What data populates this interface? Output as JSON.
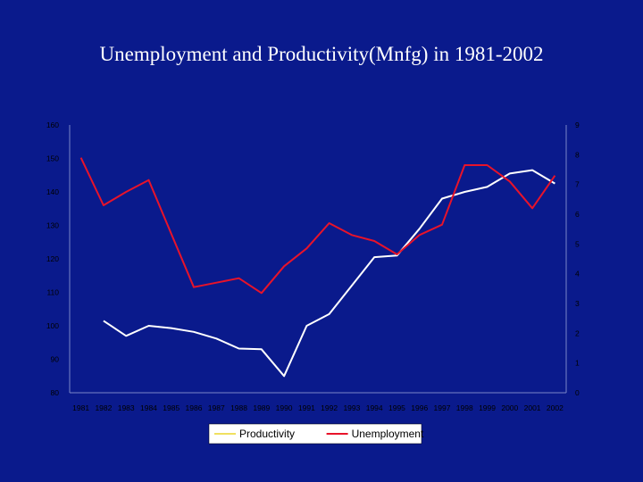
{
  "title": "Unemployment and Productivity(Mnfg) in 1981-2002",
  "chart_data": {
    "type": "line",
    "title": "Unemployment and Productivity(Mnfg) in 1981-2002",
    "categories": [
      "1981",
      "1982",
      "1983",
      "1984",
      "1985",
      "1986",
      "1987",
      "1988",
      "1989",
      "1990",
      "1991",
      "1992",
      "1993",
      "1994",
      "1995",
      "1996",
      "1997",
      "1998",
      "1999",
      "2000",
      "2001",
      "2002"
    ],
    "y_left": {
      "ticks": [
        "80",
        "90",
        "100",
        "110",
        "120",
        "130",
        "140",
        "150",
        "160"
      ],
      "lim": [
        80,
        160
      ]
    },
    "y_right": {
      "ticks": [
        "0",
        "1",
        "2",
        "3",
        "4",
        "5",
        "6",
        "7",
        "8",
        "9"
      ],
      "lim": [
        0,
        9
      ]
    },
    "grid": false,
    "legend_position": "bottom",
    "series": [
      {
        "name": "Productivity",
        "axis": "left",
        "color": "#ffffff",
        "values": [
          null,
          101.5,
          97,
          100,
          99.3,
          98.2,
          96.2,
          93.2,
          93,
          85,
          100,
          103.5,
          112,
          120.5,
          121,
          129,
          138,
          140,
          141.5,
          145.5,
          146.5,
          142.5
        ]
      },
      {
        "name": "Unemployment",
        "axis": "right",
        "color": "#e8132a",
        "values": [
          7.9,
          6.3,
          6.75,
          7.15,
          5.35,
          3.55,
          3.7,
          3.85,
          3.35,
          4.25,
          4.85,
          5.7,
          5.3,
          5.1,
          4.65,
          5.3,
          5.65,
          7.65,
          7.65,
          7.1,
          6.2,
          7.3
        ]
      }
    ]
  }
}
